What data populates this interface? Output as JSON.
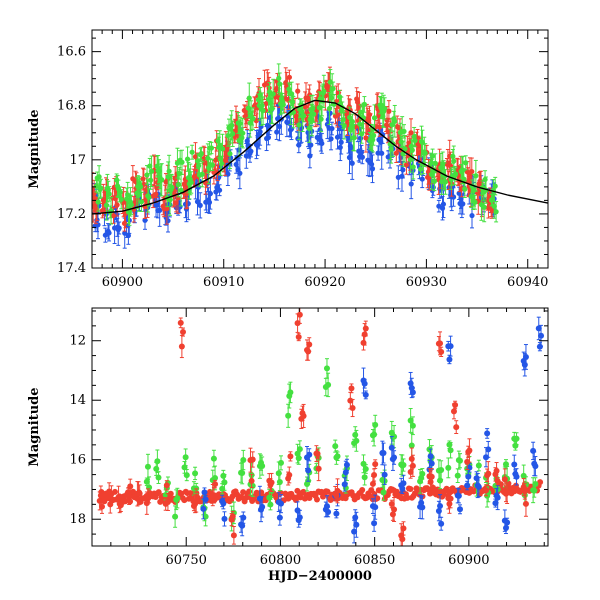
{
  "chart_data": [
    {
      "type": "scatter",
      "panel": "top",
      "title": "",
      "xlabel": "",
      "ylabel": "Magnitude",
      "xlim": [
        60897,
        60942
      ],
      "ylim": [
        17.4,
        16.52
      ],
      "y_inverted": true,
      "xticks": [
        60900,
        60910,
        60920,
        60930,
        60940
      ],
      "xtick_labels": [
        "60900",
        "60910",
        "60920",
        "60930",
        "60940"
      ],
      "yticks": [
        16.6,
        16.8,
        17,
        17.2,
        17.4
      ],
      "ytick_labels": [
        "16.6",
        "16.8",
        "17",
        "17.2",
        "17.4"
      ],
      "grid": false,
      "legend": "none",
      "series": [
        {
          "color": "#2456e6",
          "points": [
            [
              60897.5,
              17.19
            ],
            [
              60898.5,
              17.22
            ],
            [
              60899.5,
              17.2
            ],
            [
              60900.5,
              17.22
            ],
            [
              60901.5,
              17.18
            ],
            [
              60902.5,
              17.17
            ],
            [
              60903.5,
              17.14
            ],
            [
              60904.5,
              17.19
            ],
            [
              60905.5,
              17.15
            ],
            [
              60906.5,
              17.13
            ],
            [
              60907.5,
              17.12
            ],
            [
              60908.5,
              17.11
            ],
            [
              60909.5,
              17.07
            ],
            [
              60910.5,
              17.04
            ],
            [
              60911.5,
              16.99
            ],
            [
              60912.5,
              16.94
            ],
            [
              60913.5,
              16.9
            ],
            [
              60914.5,
              16.87
            ],
            [
              60915.5,
              16.85
            ],
            [
              60916.5,
              16.86
            ],
            [
              60917.5,
              16.9
            ],
            [
              60918.5,
              16.93
            ],
            [
              60919.5,
              16.9
            ],
            [
              60920.5,
              16.88
            ],
            [
              60921.5,
              16.92
            ],
            [
              60922.5,
              16.96
            ],
            [
              60923.5,
              16.94
            ],
            [
              60924.5,
              16.98
            ],
            [
              60925.5,
              16.93
            ],
            [
              60926.5,
              16.97
            ],
            [
              60927.5,
              17.01
            ],
            [
              60928.5,
              17.03
            ],
            [
              60929.5,
              17.05
            ],
            [
              60930.5,
              17.08
            ],
            [
              60931.5,
              17.12
            ],
            [
              60932.5,
              17.08
            ],
            [
              60933.5,
              17.12
            ],
            [
              60934.5,
              17.15
            ],
            [
              60935.5,
              17.16
            ],
            [
              60936.5,
              17.18
            ]
          ]
        },
        {
          "color": "#f04030",
          "points": [
            [
              60897.3,
              17.13
            ],
            [
              60898.3,
              17.17
            ],
            [
              60899.3,
              17.15
            ],
            [
              60900.3,
              17.18
            ],
            [
              60901.3,
              17.13
            ],
            [
              60902.3,
              17.12
            ],
            [
              60903.3,
              17.08
            ],
            [
              60904.3,
              17.13
            ],
            [
              60905.3,
              17.1
            ],
            [
              60906.3,
              17.07
            ],
            [
              60907.3,
              17.04
            ],
            [
              60908.3,
              17.03
            ],
            [
              60909.3,
              16.99
            ],
            [
              60910.3,
              16.97
            ],
            [
              60911.3,
              16.91
            ],
            [
              60912.3,
              16.85
            ],
            [
              60913.3,
              16.8
            ],
            [
              60914.3,
              16.76
            ],
            [
              60915.3,
              16.73
            ],
            [
              60916.3,
              16.75
            ],
            [
              60917.3,
              16.8
            ],
            [
              60918.3,
              16.82
            ],
            [
              60919.3,
              16.78
            ],
            [
              60920.3,
              16.74
            ],
            [
              60921.3,
              16.79
            ],
            [
              60922.3,
              16.84
            ],
            [
              60923.3,
              16.82
            ],
            [
              60924.3,
              16.87
            ],
            [
              60925.3,
              16.83
            ],
            [
              60926.3,
              16.88
            ],
            [
              60927.3,
              16.93
            ],
            [
              60928.3,
              16.96
            ],
            [
              60929.3,
              16.98
            ],
            [
              60930.3,
              17.02
            ],
            [
              60931.3,
              17.06
            ],
            [
              60932.3,
              17.03
            ],
            [
              60933.3,
              17.07
            ],
            [
              60934.3,
              17.1
            ],
            [
              60935.3,
              17.12
            ],
            [
              60936.3,
              17.14
            ]
          ]
        },
        {
          "color": "#44e040",
          "points": [
            [
              60897.7,
              17.1
            ],
            [
              60898.7,
              17.14
            ],
            [
              60899.7,
              17.12
            ],
            [
              60900.7,
              17.14
            ],
            [
              60901.7,
              17.1
            ],
            [
              60902.7,
              17.08
            ],
            [
              60903.7,
              17.05
            ],
            [
              60904.7,
              17.1
            ],
            [
              60905.7,
              17.06
            ],
            [
              60906.7,
              17.03
            ],
            [
              60907.7,
              17.01
            ],
            [
              60908.7,
              16.99
            ],
            [
              60909.7,
              16.96
            ],
            [
              60910.7,
              16.93
            ],
            [
              60911.7,
              16.88
            ],
            [
              60912.7,
              16.83
            ],
            [
              60913.7,
              16.79
            ],
            [
              60914.7,
              16.77
            ],
            [
              60915.7,
              16.75
            ],
            [
              60916.7,
              16.77
            ],
            [
              60917.7,
              16.82
            ],
            [
              60918.7,
              16.84
            ],
            [
              60919.7,
              16.8
            ],
            [
              60920.7,
              16.77
            ],
            [
              60921.7,
              16.82
            ],
            [
              60922.7,
              16.87
            ],
            [
              60923.7,
              16.85
            ],
            [
              60924.7,
              16.89
            ],
            [
              60925.7,
              16.85
            ],
            [
              60926.7,
              16.9
            ],
            [
              60927.7,
              16.95
            ],
            [
              60928.7,
              16.97
            ],
            [
              60929.7,
              16.99
            ],
            [
              60930.7,
              17.03
            ],
            [
              60931.7,
              17.06
            ],
            [
              60932.7,
              17.03
            ],
            [
              60933.7,
              17.07
            ],
            [
              60934.7,
              17.1
            ],
            [
              60935.7,
              17.12
            ],
            [
              60936.7,
              17.14
            ]
          ]
        }
      ],
      "model_curve": [
        [
          60897,
          17.2
        ],
        [
          60900,
          17.19
        ],
        [
          60903,
          17.16
        ],
        [
          60906,
          17.12
        ],
        [
          60909,
          17.06
        ],
        [
          60912,
          16.97
        ],
        [
          60915,
          16.87
        ],
        [
          60917,
          16.81
        ],
        [
          60919,
          16.78
        ],
        [
          60921,
          16.79
        ],
        [
          60923,
          16.83
        ],
        [
          60925,
          16.89
        ],
        [
          60927,
          16.95
        ],
        [
          60929,
          17.0
        ],
        [
          60932,
          17.06
        ],
        [
          60935,
          17.1
        ],
        [
          60938,
          17.13
        ],
        [
          60942,
          17.16
        ]
      ]
    },
    {
      "type": "scatter",
      "panel": "bottom",
      "title": "",
      "xlabel": "HJD−2400000",
      "ylabel": "Magnitude",
      "xlim": [
        60700,
        60942
      ],
      "ylim": [
        18.9,
        10.9
      ],
      "y_inverted": true,
      "xticks": [
        60750,
        60800,
        60850,
        60900
      ],
      "xtick_labels": [
        "60750",
        "60800",
        "60850",
        "60900"
      ],
      "yticks": [
        12,
        14,
        16,
        18
      ],
      "ytick_labels": [
        "12",
        "14",
        "16",
        "18"
      ],
      "grid": false,
      "legend": "none",
      "series": [
        {
          "color": "#44e040",
          "points": [
            [
              60730,
              16.6
            ],
            [
              60735,
              16.3
            ],
            [
              60740,
              16.9
            ],
            [
              60745,
              17.5
            ],
            [
              60750,
              16.1
            ],
            [
              60755,
              16.8
            ],
            [
              60760,
              17.6
            ],
            [
              60765,
              16.4
            ],
            [
              60770,
              16.9
            ],
            [
              60775,
              17.8
            ],
            [
              60780,
              16.2
            ],
            [
              60785,
              16.7
            ],
            [
              60790,
              15.8
            ],
            [
              60795,
              17.4
            ],
            [
              60800,
              16.5
            ],
            [
              60805,
              14.1
            ],
            [
              60810,
              15.9
            ],
            [
              60815,
              16.8
            ],
            [
              60820,
              16.0
            ],
            [
              60825,
              13.3
            ],
            [
              60830,
              15.8
            ],
            [
              60835,
              16.6
            ],
            [
              60840,
              15.6
            ],
            [
              60845,
              16.2
            ],
            [
              60850,
              15.0
            ],
            [
              60855,
              16.7
            ],
            [
              60860,
              15.4
            ],
            [
              60865,
              16.4
            ],
            [
              60870,
              15.1
            ],
            [
              60875,
              16.6
            ],
            [
              60880,
              16.0
            ],
            [
              60885,
              16.5
            ],
            [
              60890,
              15.9
            ],
            [
              60895,
              16.3
            ],
            [
              60900,
              16.2
            ],
            [
              60905,
              16.6
            ],
            [
              60910,
              16.8
            ],
            [
              60915,
              16.9
            ],
            [
              60920,
              16.4
            ],
            [
              60925,
              15.5
            ],
            [
              60930,
              16.9
            ],
            [
              60935,
              16.8
            ]
          ]
        },
        {
          "color": "#2456e6",
          "points": [
            [
              60760,
              17.5
            ],
            [
              60770,
              17.8
            ],
            [
              60780,
              17.9
            ],
            [
              60790,
              17.6
            ],
            [
              60800,
              17.8
            ],
            [
              60810,
              17.9
            ],
            [
              60815,
              16.2
            ],
            [
              60825,
              17.8
            ],
            [
              60830,
              17.5
            ],
            [
              60835,
              16.6
            ],
            [
              60840,
              18.1
            ],
            [
              60845,
              13.7
            ],
            [
              60850,
              17.9
            ],
            [
              60855,
              16.2
            ],
            [
              60860,
              15.6
            ],
            [
              60865,
              16.9
            ],
            [
              60870,
              13.5
            ],
            [
              60875,
              17.7
            ],
            [
              60880,
              16.3
            ],
            [
              60885,
              17.9
            ],
            [
              60890,
              12.3
            ],
            [
              60895,
              17.5
            ],
            [
              60900,
              16.5
            ],
            [
              60905,
              16.8
            ],
            [
              60910,
              15.5
            ],
            [
              60915,
              17.4
            ],
            [
              60920,
              17.9
            ],
            [
              60925,
              16.4
            ],
            [
              60930,
              12.5
            ],
            [
              60935,
              16.0
            ],
            [
              60938,
              11.9
            ]
          ]
        },
        {
          "color": "#f04030",
          "points": [
            [
              60705,
              17.2
            ],
            [
              60710,
              17.3
            ],
            [
              60715,
              17.2
            ],
            [
              60720,
              17.3
            ],
            [
              60725,
              17.2
            ],
            [
              60730,
              17.3
            ],
            [
              60740,
              17.1
            ],
            [
              60748,
              11.8
            ],
            [
              60755,
              17.2
            ],
            [
              60765,
              17.1
            ],
            [
              60775,
              18.2
            ],
            [
              60785,
              16.4
            ],
            [
              60795,
              17.0
            ],
            [
              60805,
              16.2
            ],
            [
              60810,
              11.5
            ],
            [
              60812,
              14.3
            ],
            [
              60815,
              12.5
            ],
            [
              60820,
              16.0
            ],
            [
              60830,
              16.8
            ],
            [
              60838,
              14.0
            ],
            [
              60845,
              11.7
            ],
            [
              60850,
              16.5
            ],
            [
              60860,
              17.4
            ],
            [
              60865,
              18.3
            ],
            [
              60870,
              16.2
            ],
            [
              60880,
              16.9
            ],
            [
              60885,
              12.5
            ],
            [
              60890,
              17.2
            ],
            [
              60893,
              14.5
            ],
            [
              60900,
              16.0
            ],
            [
              60910,
              16.7
            ],
            [
              60915,
              16.6
            ],
            [
              60920,
              16.9
            ],
            [
              60930,
              17.1
            ]
          ]
        }
      ]
    }
  ]
}
